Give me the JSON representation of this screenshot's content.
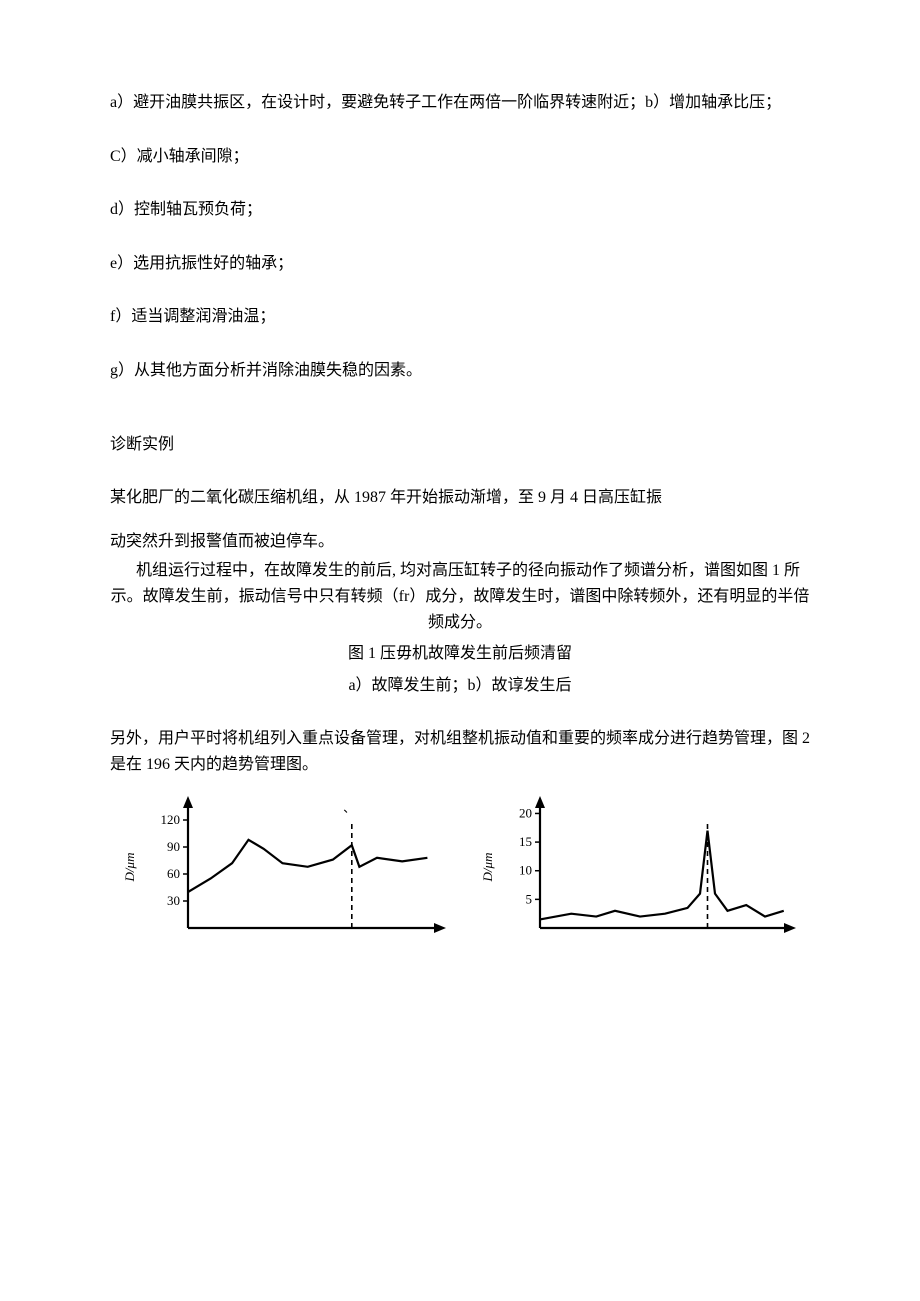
{
  "list": {
    "a": "a）避开油膜共振区，在设计时，要避免转子工作在两倍一阶临界转速附近；b）增加轴承比压；",
    "c": "C）减小轴承间隙；",
    "d": "d）控制轴瓦预负荷；",
    "e": "e）选用抗振性好的轴承；",
    "f": "f）适当调整润滑油温；",
    "g": "g）从其他方面分析并消除油膜失稳的因素。"
  },
  "section_title": "诊断实例",
  "body1": "某化肥厂的二氧化碳压缩机组，从 1987 年开始振动渐增，至 9 月 4 日高压缸振",
  "body2": "动突然升到报警值而被迫停车。",
  "body3": "机组运行过程中，在故障发生的前后, 均对高压缸转子的径向振动作了频谱分析，谱图如图 1 所示。故障发生前，振动信号中只有转频（fr）成分，故障发生时，谱图中除转频外，还有明显的半倍频成分。",
  "caption1": "图 1 压毋机故障发生前后频清留",
  "caption2": "a）故障发生前；b）故谆发生后",
  "body4": "另外，用户平时将机组列入重点设备管理，对机组整机振动值和重要的频率成分进行趋势管理，图 2 是在 196 天内的趋势管理图。",
  "chart_left": {
    "type": "line",
    "ylabel": "D/μm",
    "yticks": [
      30,
      60,
      90,
      120
    ],
    "ylim": [
      0,
      140
    ],
    "xlim": [
      0,
      200
    ],
    "series": [
      {
        "x": 0,
        "y": 40
      },
      {
        "x": 18,
        "y": 55
      },
      {
        "x": 35,
        "y": 72
      },
      {
        "x": 48,
        "y": 98
      },
      {
        "x": 60,
        "y": 88
      },
      {
        "x": 75,
        "y": 72
      },
      {
        "x": 95,
        "y": 68
      },
      {
        "x": 115,
        "y": 76
      },
      {
        "x": 130,
        "y": 92
      },
      {
        "x": 136,
        "y": 68
      },
      {
        "x": 150,
        "y": 78
      },
      {
        "x": 170,
        "y": 74
      },
      {
        "x": 190,
        "y": 78
      }
    ],
    "marker_x": 130,
    "apostrophe_x": 128,
    "axis_color": "#000000",
    "line_color": "#000000",
    "line_width": 2.2,
    "axis_width": 2.2,
    "dash": "5,4"
  },
  "chart_right": {
    "type": "line",
    "ylabel": "D/μm",
    "yticks": [
      5,
      10,
      15,
      20
    ],
    "ylim": [
      0,
      22
    ],
    "xlim": [
      0,
      200
    ],
    "series": [
      {
        "x": 0,
        "y": 1.5
      },
      {
        "x": 25,
        "y": 2.5
      },
      {
        "x": 45,
        "y": 2
      },
      {
        "x": 60,
        "y": 3
      },
      {
        "x": 80,
        "y": 2
      },
      {
        "x": 100,
        "y": 2.5
      },
      {
        "x": 118,
        "y": 3.5
      },
      {
        "x": 128,
        "y": 6
      },
      {
        "x": 134,
        "y": 17
      },
      {
        "x": 140,
        "y": 6
      },
      {
        "x": 150,
        "y": 3
      },
      {
        "x": 165,
        "y": 4
      },
      {
        "x": 180,
        "y": 2
      },
      {
        "x": 195,
        "y": 3
      }
    ],
    "marker_x": 134,
    "axis_color": "#000000",
    "line_color": "#000000",
    "line_width": 2.2,
    "axis_width": 2.2,
    "dash": "5,4"
  }
}
